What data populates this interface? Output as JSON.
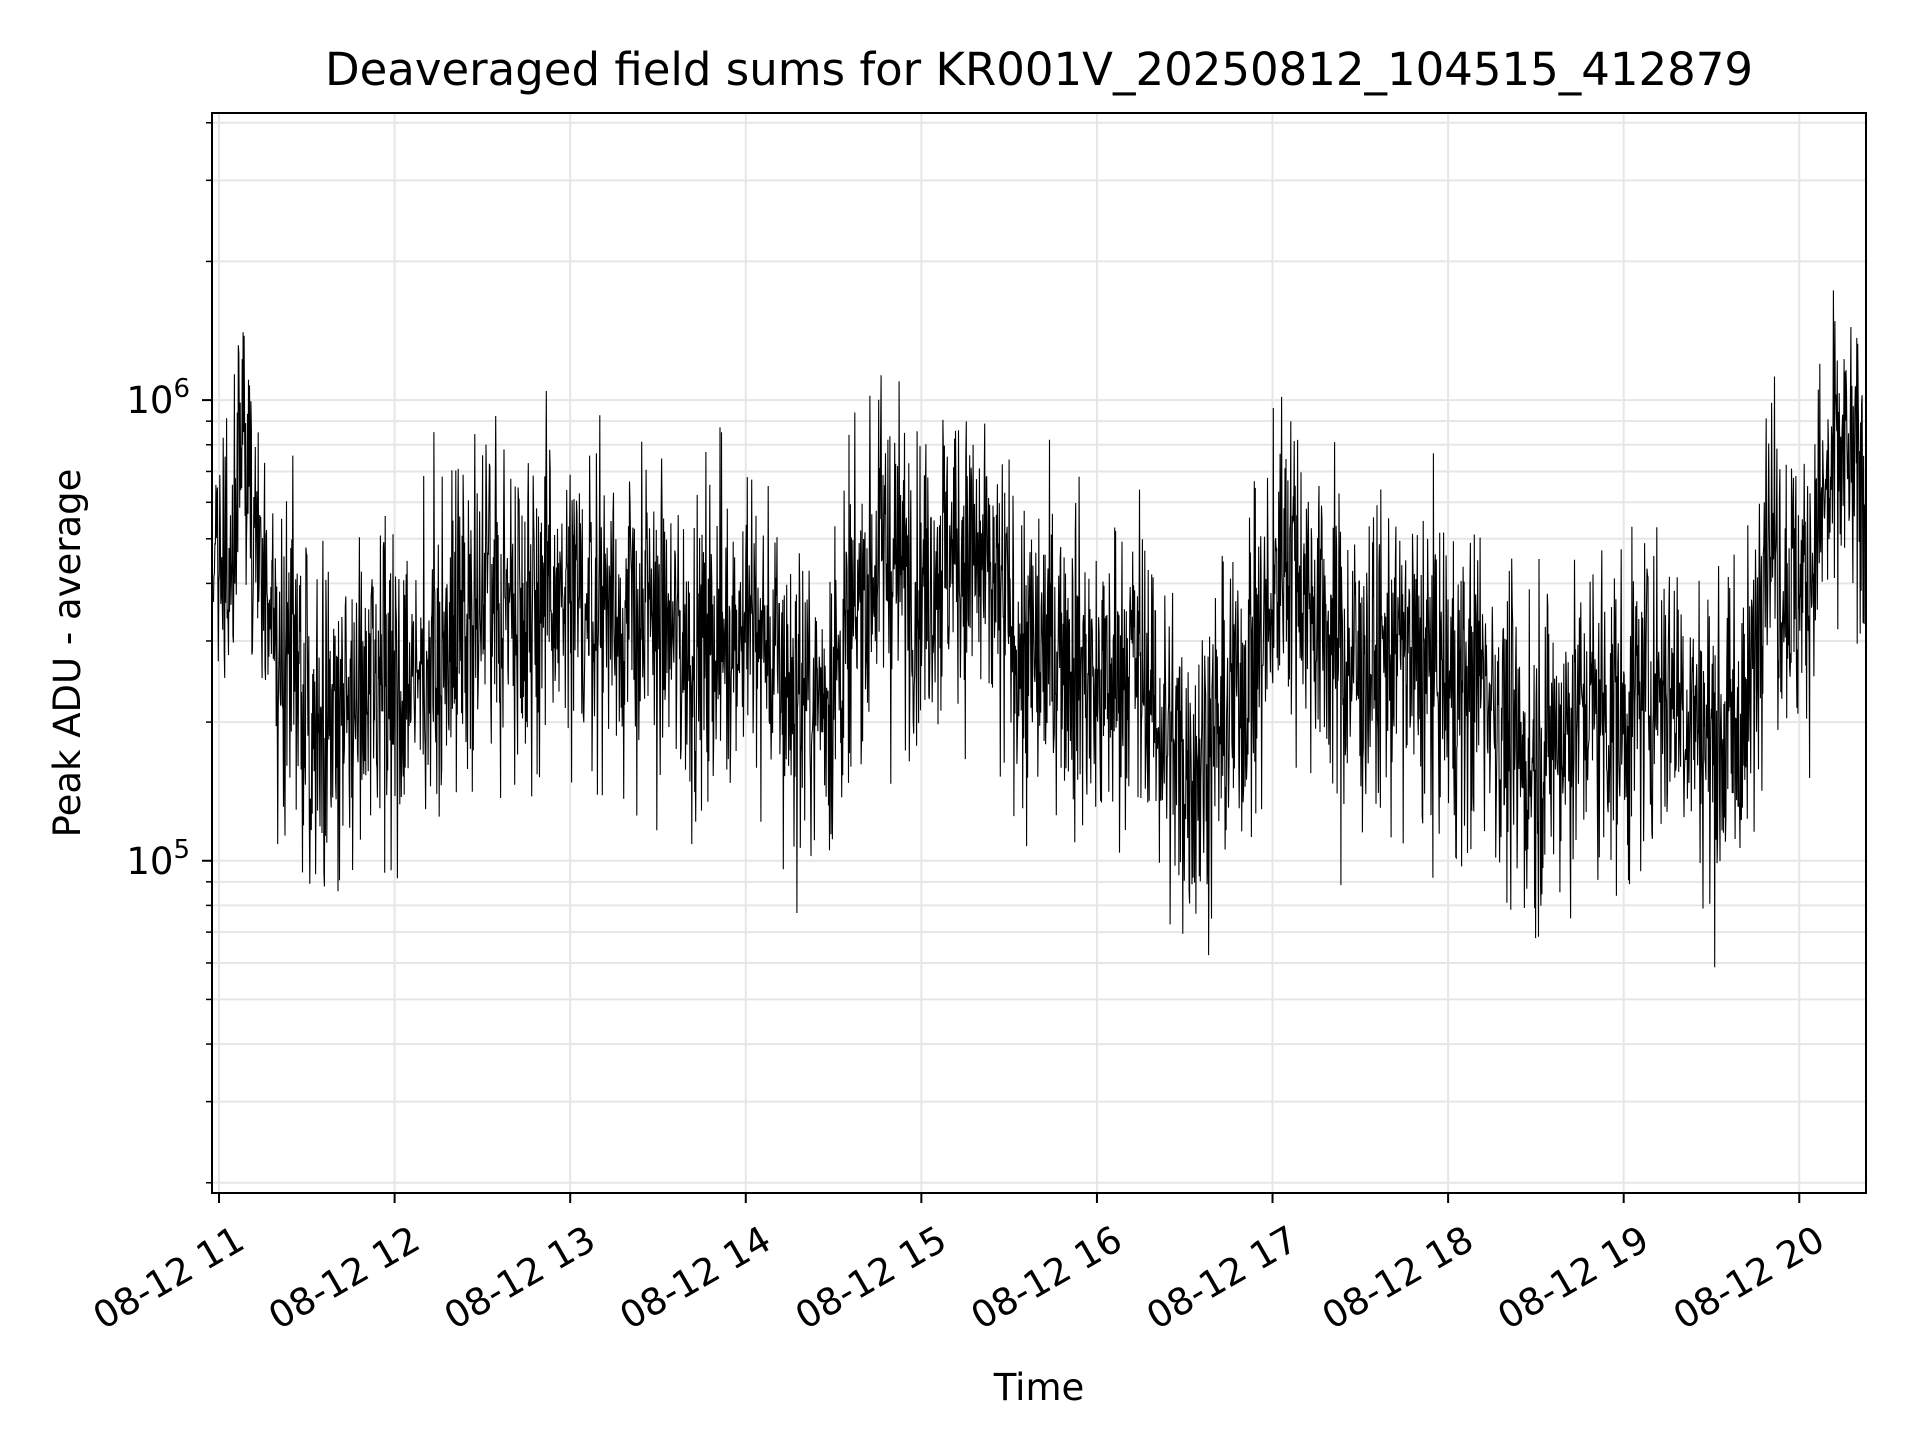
{
  "chart_data": {
    "type": "line",
    "title": "Deaveraged field sums for KR001V_20250812_104515_412879",
    "xlabel": "Time",
    "ylabel": "Peak ADU - average",
    "yscale": "log",
    "grid": true,
    "line_color": "#000000",
    "grid_color": "#e6e6e6",
    "x_tick_labels": [
      "08-12 11",
      "08-12 12",
      "08-12 13",
      "08-12 14",
      "08-12 15",
      "08-12 16",
      "08-12 17",
      "08-12 18",
      "08-12 19",
      "08-12 20"
    ],
    "x_tick_hours": [
      11,
      12,
      13,
      14,
      15,
      16,
      17,
      18,
      19,
      20
    ],
    "xlim_hours": [
      10.96,
      20.38
    ],
    "y_ticks": [
      {
        "value": 100000,
        "base": "10",
        "exponent": "5"
      },
      {
        "value": 1000000,
        "base": "10",
        "exponent": "6"
      }
    ],
    "ylim": [
      19000,
      4200000
    ],
    "series": [
      {
        "points": [
          [
            10.96,
            420000
          ],
          [
            11.0,
            560000
          ],
          [
            11.05,
            380000
          ],
          [
            11.1,
            700000
          ],
          [
            11.15,
            820000
          ],
          [
            11.2,
            480000
          ],
          [
            11.25,
            380000
          ],
          [
            11.3,
            360000
          ],
          [
            11.35,
            300000
          ],
          [
            11.4,
            260000
          ],
          [
            11.5,
            240000
          ],
          [
            11.6,
            190000
          ],
          [
            11.7,
            210000
          ],
          [
            11.8,
            230000
          ],
          [
            11.9,
            200000
          ],
          [
            11.95,
            240000
          ],
          [
            12.0,
            250000
          ],
          [
            12.1,
            230000
          ],
          [
            12.2,
            260000
          ],
          [
            12.3,
            320000
          ],
          [
            12.4,
            360000
          ],
          [
            12.5,
            380000
          ],
          [
            12.6,
            360000
          ],
          [
            12.7,
            380000
          ],
          [
            12.8,
            370000
          ],
          [
            12.9,
            360000
          ],
          [
            13.0,
            340000
          ],
          [
            13.1,
            360000
          ],
          [
            13.2,
            380000
          ],
          [
            13.3,
            340000
          ],
          [
            13.4,
            320000
          ],
          [
            13.5,
            340000
          ],
          [
            13.6,
            300000
          ],
          [
            13.7,
            280000
          ],
          [
            13.8,
            300000
          ],
          [
            13.9,
            320000
          ],
          [
            14.0,
            330000
          ],
          [
            14.1,
            300000
          ],
          [
            14.2,
            250000
          ],
          [
            14.3,
            230000
          ],
          [
            14.4,
            220000
          ],
          [
            14.5,
            250000
          ],
          [
            14.6,
            300000
          ],
          [
            14.7,
            420000
          ],
          [
            14.8,
            480000
          ],
          [
            14.9,
            420000
          ],
          [
            15.0,
            400000
          ],
          [
            15.1,
            450000
          ],
          [
            15.2,
            480000
          ],
          [
            15.3,
            450000
          ],
          [
            15.4,
            380000
          ],
          [
            15.5,
            330000
          ],
          [
            15.6,
            260000
          ],
          [
            15.7,
            280000
          ],
          [
            15.8,
            300000
          ],
          [
            15.9,
            270000
          ],
          [
            16.0,
            230000
          ],
          [
            16.1,
            250000
          ],
          [
            16.2,
            280000
          ],
          [
            16.3,
            230000
          ],
          [
            16.4,
            180000
          ],
          [
            16.5,
            160000
          ],
          [
            16.6,
            170000
          ],
          [
            16.7,
            190000
          ],
          [
            16.8,
            230000
          ],
          [
            16.9,
            280000
          ],
          [
            17.0,
            350000
          ],
          [
            17.05,
            500000
          ],
          [
            17.1,
            480000
          ],
          [
            17.2,
            380000
          ],
          [
            17.3,
            320000
          ],
          [
            17.4,
            280000
          ],
          [
            17.5,
            260000
          ],
          [
            17.6,
            270000
          ],
          [
            17.7,
            290000
          ],
          [
            17.8,
            270000
          ],
          [
            17.9,
            260000
          ],
          [
            18.0,
            240000
          ],
          [
            18.1,
            230000
          ],
          [
            18.2,
            260000
          ],
          [
            18.3,
            200000
          ],
          [
            18.4,
            160000
          ],
          [
            18.5,
            170000
          ],
          [
            18.6,
            180000
          ],
          [
            18.7,
            200000
          ],
          [
            18.8,
            220000
          ],
          [
            18.9,
            210000
          ],
          [
            19.0,
            200000
          ],
          [
            19.1,
            230000
          ],
          [
            19.2,
            250000
          ],
          [
            19.3,
            230000
          ],
          [
            19.4,
            210000
          ],
          [
            19.5,
            180000
          ],
          [
            19.6,
            190000
          ],
          [
            19.7,
            200000
          ],
          [
            19.75,
            280000
          ],
          [
            19.8,
            600000
          ],
          [
            19.9,
            420000
          ],
          [
            20.0,
            380000
          ],
          [
            20.05,
            420000
          ],
          [
            20.1,
            520000
          ],
          [
            20.15,
            600000
          ],
          [
            20.2,
            700000
          ],
          [
            20.25,
            750000
          ],
          [
            20.3,
            680000
          ],
          [
            20.38,
            620000
          ]
        ]
      }
    ]
  }
}
